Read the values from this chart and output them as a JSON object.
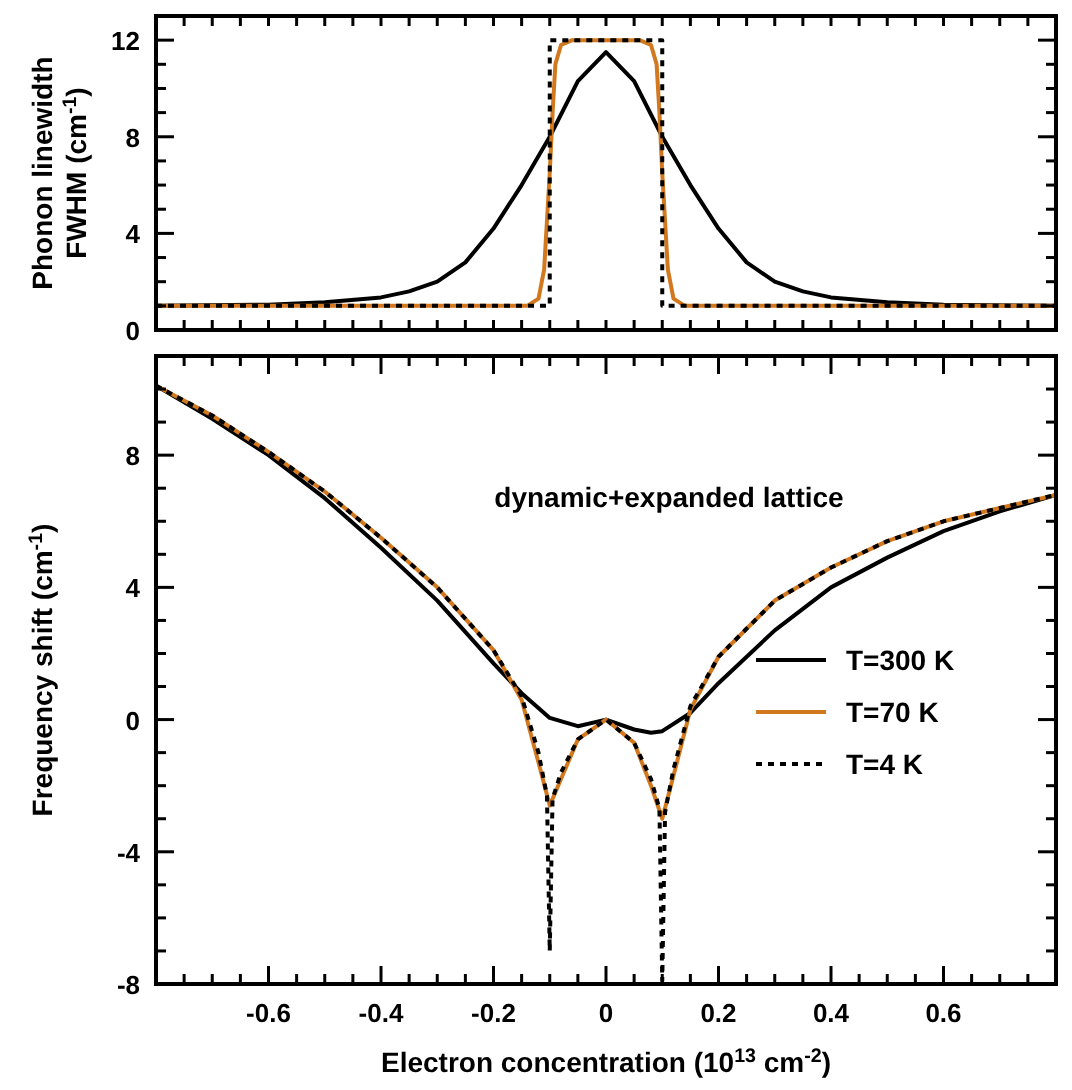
{
  "chart_data": [
    {
      "type": "line",
      "ylabel": "Phonon linewidth\nFWHM (cm$^{-1}$)",
      "xlim": [
        -0.8,
        0.8
      ],
      "ylim": [
        0,
        13
      ],
      "tick_labels": "y",
      "grid": false,
      "legend": false,
      "yticks": [
        0,
        {
          "value": 1,
          "label": null
        },
        {
          "value": 2,
          "label": null
        },
        {
          "value": 3,
          "label": null
        },
        4,
        {
          "value": 5,
          "label": null
        },
        {
          "value": 6,
          "label": null
        },
        {
          "value": 7,
          "label": null
        },
        8,
        {
          "value": 9,
          "label": null
        },
        {
          "value": 10,
          "label": null
        },
        {
          "value": 11,
          "label": null
        },
        12
      ],
      "xticks": [
        {
          "value": -0.75,
          "label": null
        },
        {
          "value": -0.7,
          "label": null
        },
        {
          "value": -0.65,
          "label": null
        },
        {
          "value": -0.6,
          "label": null
        },
        {
          "value": -0.55,
          "label": null
        },
        {
          "value": -0.5,
          "label": null
        },
        {
          "value": -0.45,
          "label": null
        },
        {
          "value": -0.4,
          "label": null
        },
        {
          "value": -0.35,
          "label": null
        },
        {
          "value": -0.3,
          "label": null
        },
        {
          "value": -0.25,
          "label": null
        },
        {
          "value": -0.2,
          "label": null
        },
        {
          "value": -0.15,
          "label": null
        },
        {
          "value": -0.1,
          "label": null
        },
        {
          "value": -0.05,
          "label": null
        },
        {
          "value": 0,
          "label": null
        },
        {
          "value": 0.05,
          "label": null
        },
        {
          "value": 0.1,
          "label": null
        },
        {
          "value": 0.15,
          "label": null
        },
        {
          "value": 0.2,
          "label": null
        },
        {
          "value": 0.25,
          "label": null
        },
        {
          "value": 0.3,
          "label": null
        },
        {
          "value": 0.35,
          "label": null
        },
        {
          "value": 0.4,
          "label": null
        },
        {
          "value": 0.45,
          "label": null
        },
        {
          "value": 0.5,
          "label": null
        },
        {
          "value": 0.55,
          "label": null
        },
        {
          "value": 0.6,
          "label": null
        },
        {
          "value": 0.65,
          "label": null
        },
        {
          "value": 0.7,
          "label": null
        },
        {
          "value": 0.75,
          "label": null
        }
      ],
      "series": [
        {
          "color": "#000000",
          "line_style": "solid",
          "x": [
            -0.8,
            -0.6,
            -0.5,
            -0.4,
            -0.35,
            -0.3,
            -0.25,
            -0.2,
            -0.15,
            -0.1,
            -0.05,
            0,
            0.05,
            0.1,
            0.15,
            0.2,
            0.25,
            0.3,
            0.35,
            0.4,
            0.5,
            0.6,
            0.8
          ],
          "values": [
            1.0,
            1.05,
            1.15,
            1.35,
            1.6,
            2.0,
            2.8,
            4.2,
            6.0,
            8.0,
            10.3,
            11.5,
            10.3,
            8.0,
            6.0,
            4.2,
            2.8,
            2.0,
            1.6,
            1.35,
            1.15,
            1.05,
            1.0
          ]
        },
        {
          "color": "#d2781e",
          "line_style": "solid",
          "x": [
            -0.8,
            -0.14,
            -0.12,
            -0.11,
            -0.1,
            -0.095,
            -0.09,
            -0.08,
            -0.06,
            0,
            0.06,
            0.08,
            0.09,
            0.095,
            0.1,
            0.11,
            0.12,
            0.14,
            0.8
          ],
          "values": [
            1.0,
            1.0,
            1.3,
            2.5,
            6.5,
            9.0,
            11.0,
            11.8,
            12.0,
            12.0,
            12.0,
            11.8,
            11.0,
            9.0,
            6.5,
            2.5,
            1.3,
            1.0,
            1.0
          ]
        },
        {
          "color": "#000000",
          "line_style": "dotted",
          "x": [
            -0.8,
            -0.1,
            -0.1,
            0.1,
            0.1,
            0.8
          ],
          "values": [
            1,
            1,
            12,
            12,
            1,
            1
          ]
        }
      ]
    },
    {
      "type": "line",
      "xlabel": "Electron concentration (10$^{13}$ cm$^{-2}$)",
      "ylabel": "Frequency shift (cm$^{-1}$)",
      "xlim": [
        -0.8,
        0.8
      ],
      "ylim": [
        -8,
        11
      ],
      "grid": false,
      "legend": "right",
      "annotations": [
        "dynamic+expanded lattice"
      ],
      "yticks": [
        -8,
        {
          "value": -7,
          "label": null
        },
        {
          "value": -6,
          "label": null
        },
        {
          "value": -5,
          "label": null
        },
        -4,
        {
          "value": -3,
          "label": null
        },
        {
          "value": -2,
          "label": null
        },
        {
          "value": -1,
          "label": null
        },
        0,
        {
          "value": 1,
          "label": null
        },
        {
          "value": 2,
          "label": null
        },
        {
          "value": 3,
          "label": null
        },
        4,
        {
          "value": 5,
          "label": null
        },
        {
          "value": 6,
          "label": null
        },
        {
          "value": 7,
          "label": null
        },
        8,
        {
          "value": 9,
          "label": null
        },
        {
          "value": 10,
          "label": null
        }
      ],
      "xticks": [
        {
          "value": -0.75,
          "label": null
        },
        {
          "value": -0.7,
          "label": null
        },
        {
          "value": -0.65,
          "label": null
        },
        -0.6,
        {
          "value": -0.55,
          "label": null
        },
        {
          "value": -0.5,
          "label": null
        },
        {
          "value": -0.45,
          "label": null
        },
        -0.4,
        {
          "value": -0.35,
          "label": null
        },
        {
          "value": -0.3,
          "label": null
        },
        {
          "value": -0.25,
          "label": null
        },
        -0.2,
        {
          "value": -0.15,
          "label": null
        },
        {
          "value": -0.1,
          "label": null
        },
        {
          "value": -0.05,
          "label": null
        },
        0,
        {
          "value": 0.05,
          "label": null
        },
        {
          "value": 0.1,
          "label": null
        },
        {
          "value": 0.15,
          "label": null
        },
        0.2,
        {
          "value": 0.25,
          "label": null
        },
        {
          "value": 0.3,
          "label": null
        },
        {
          "value": 0.35,
          "label": null
        },
        0.4,
        {
          "value": 0.45,
          "label": null
        },
        {
          "value": 0.5,
          "label": null
        },
        {
          "value": 0.55,
          "label": null
        },
        0.6,
        {
          "value": 0.65,
          "label": null
        },
        {
          "value": 0.7,
          "label": null
        },
        {
          "value": 0.75,
          "label": null
        }
      ],
      "series": [
        {
          "name": "T=300 K",
          "color": "#000000",
          "line_style": "solid",
          "x": [
            -0.8,
            -0.7,
            -0.6,
            -0.5,
            -0.4,
            -0.3,
            -0.2,
            -0.15,
            -0.1,
            -0.05,
            0,
            0.05,
            0.08,
            0.1,
            0.15,
            0.2,
            0.3,
            0.4,
            0.5,
            0.6,
            0.7,
            0.8
          ],
          "values": [
            10.1,
            9.1,
            8.0,
            6.7,
            5.2,
            3.6,
            1.7,
            0.8,
            0.05,
            -0.2,
            0,
            -0.3,
            -0.4,
            -0.35,
            0.2,
            1.1,
            2.7,
            4.0,
            4.9,
            5.7,
            6.3,
            6.8
          ]
        },
        {
          "name": "T=70 K",
          "color": "#d2781e",
          "line_style": "solid",
          "x": [
            -0.8,
            -0.7,
            -0.6,
            -0.5,
            -0.4,
            -0.3,
            -0.2,
            -0.15,
            -0.12,
            -0.1,
            -0.08,
            -0.05,
            0,
            0.05,
            0.08,
            0.1,
            0.12,
            0.15,
            0.2,
            0.3,
            0.4,
            0.5,
            0.6,
            0.7,
            0.8
          ],
          "values": [
            10.1,
            9.2,
            8.1,
            6.9,
            5.5,
            4.0,
            2.1,
            0.6,
            -1.3,
            -2.6,
            -1.8,
            -0.6,
            0,
            -0.7,
            -2.0,
            -3.0,
            -1.7,
            0.3,
            1.9,
            3.6,
            4.6,
            5.4,
            6.0,
            6.4,
            6.8
          ]
        },
        {
          "name": "T=4 K",
          "color": "#000000",
          "line_style": "dotted",
          "x": [
            -0.8,
            -0.7,
            -0.6,
            -0.5,
            -0.4,
            -0.3,
            -0.2,
            -0.15,
            -0.12,
            -0.105,
            -0.1,
            -0.095,
            -0.08,
            -0.05,
            0,
            0.05,
            0.08,
            0.095,
            0.1,
            0.105,
            0.12,
            0.15,
            0.2,
            0.3,
            0.4,
            0.5,
            0.6,
            0.7,
            0.8
          ],
          "values": [
            10.1,
            9.2,
            8.1,
            6.9,
            5.5,
            4.0,
            2.1,
            0.7,
            -1.0,
            -2.3,
            -7.0,
            -2.4,
            -1.6,
            -0.6,
            0,
            -0.7,
            -1.8,
            -2.7,
            -7.9,
            -2.8,
            -1.5,
            0.4,
            1.9,
            3.6,
            4.6,
            5.4,
            6.0,
            6.4,
            6.8
          ]
        }
      ]
    }
  ]
}
